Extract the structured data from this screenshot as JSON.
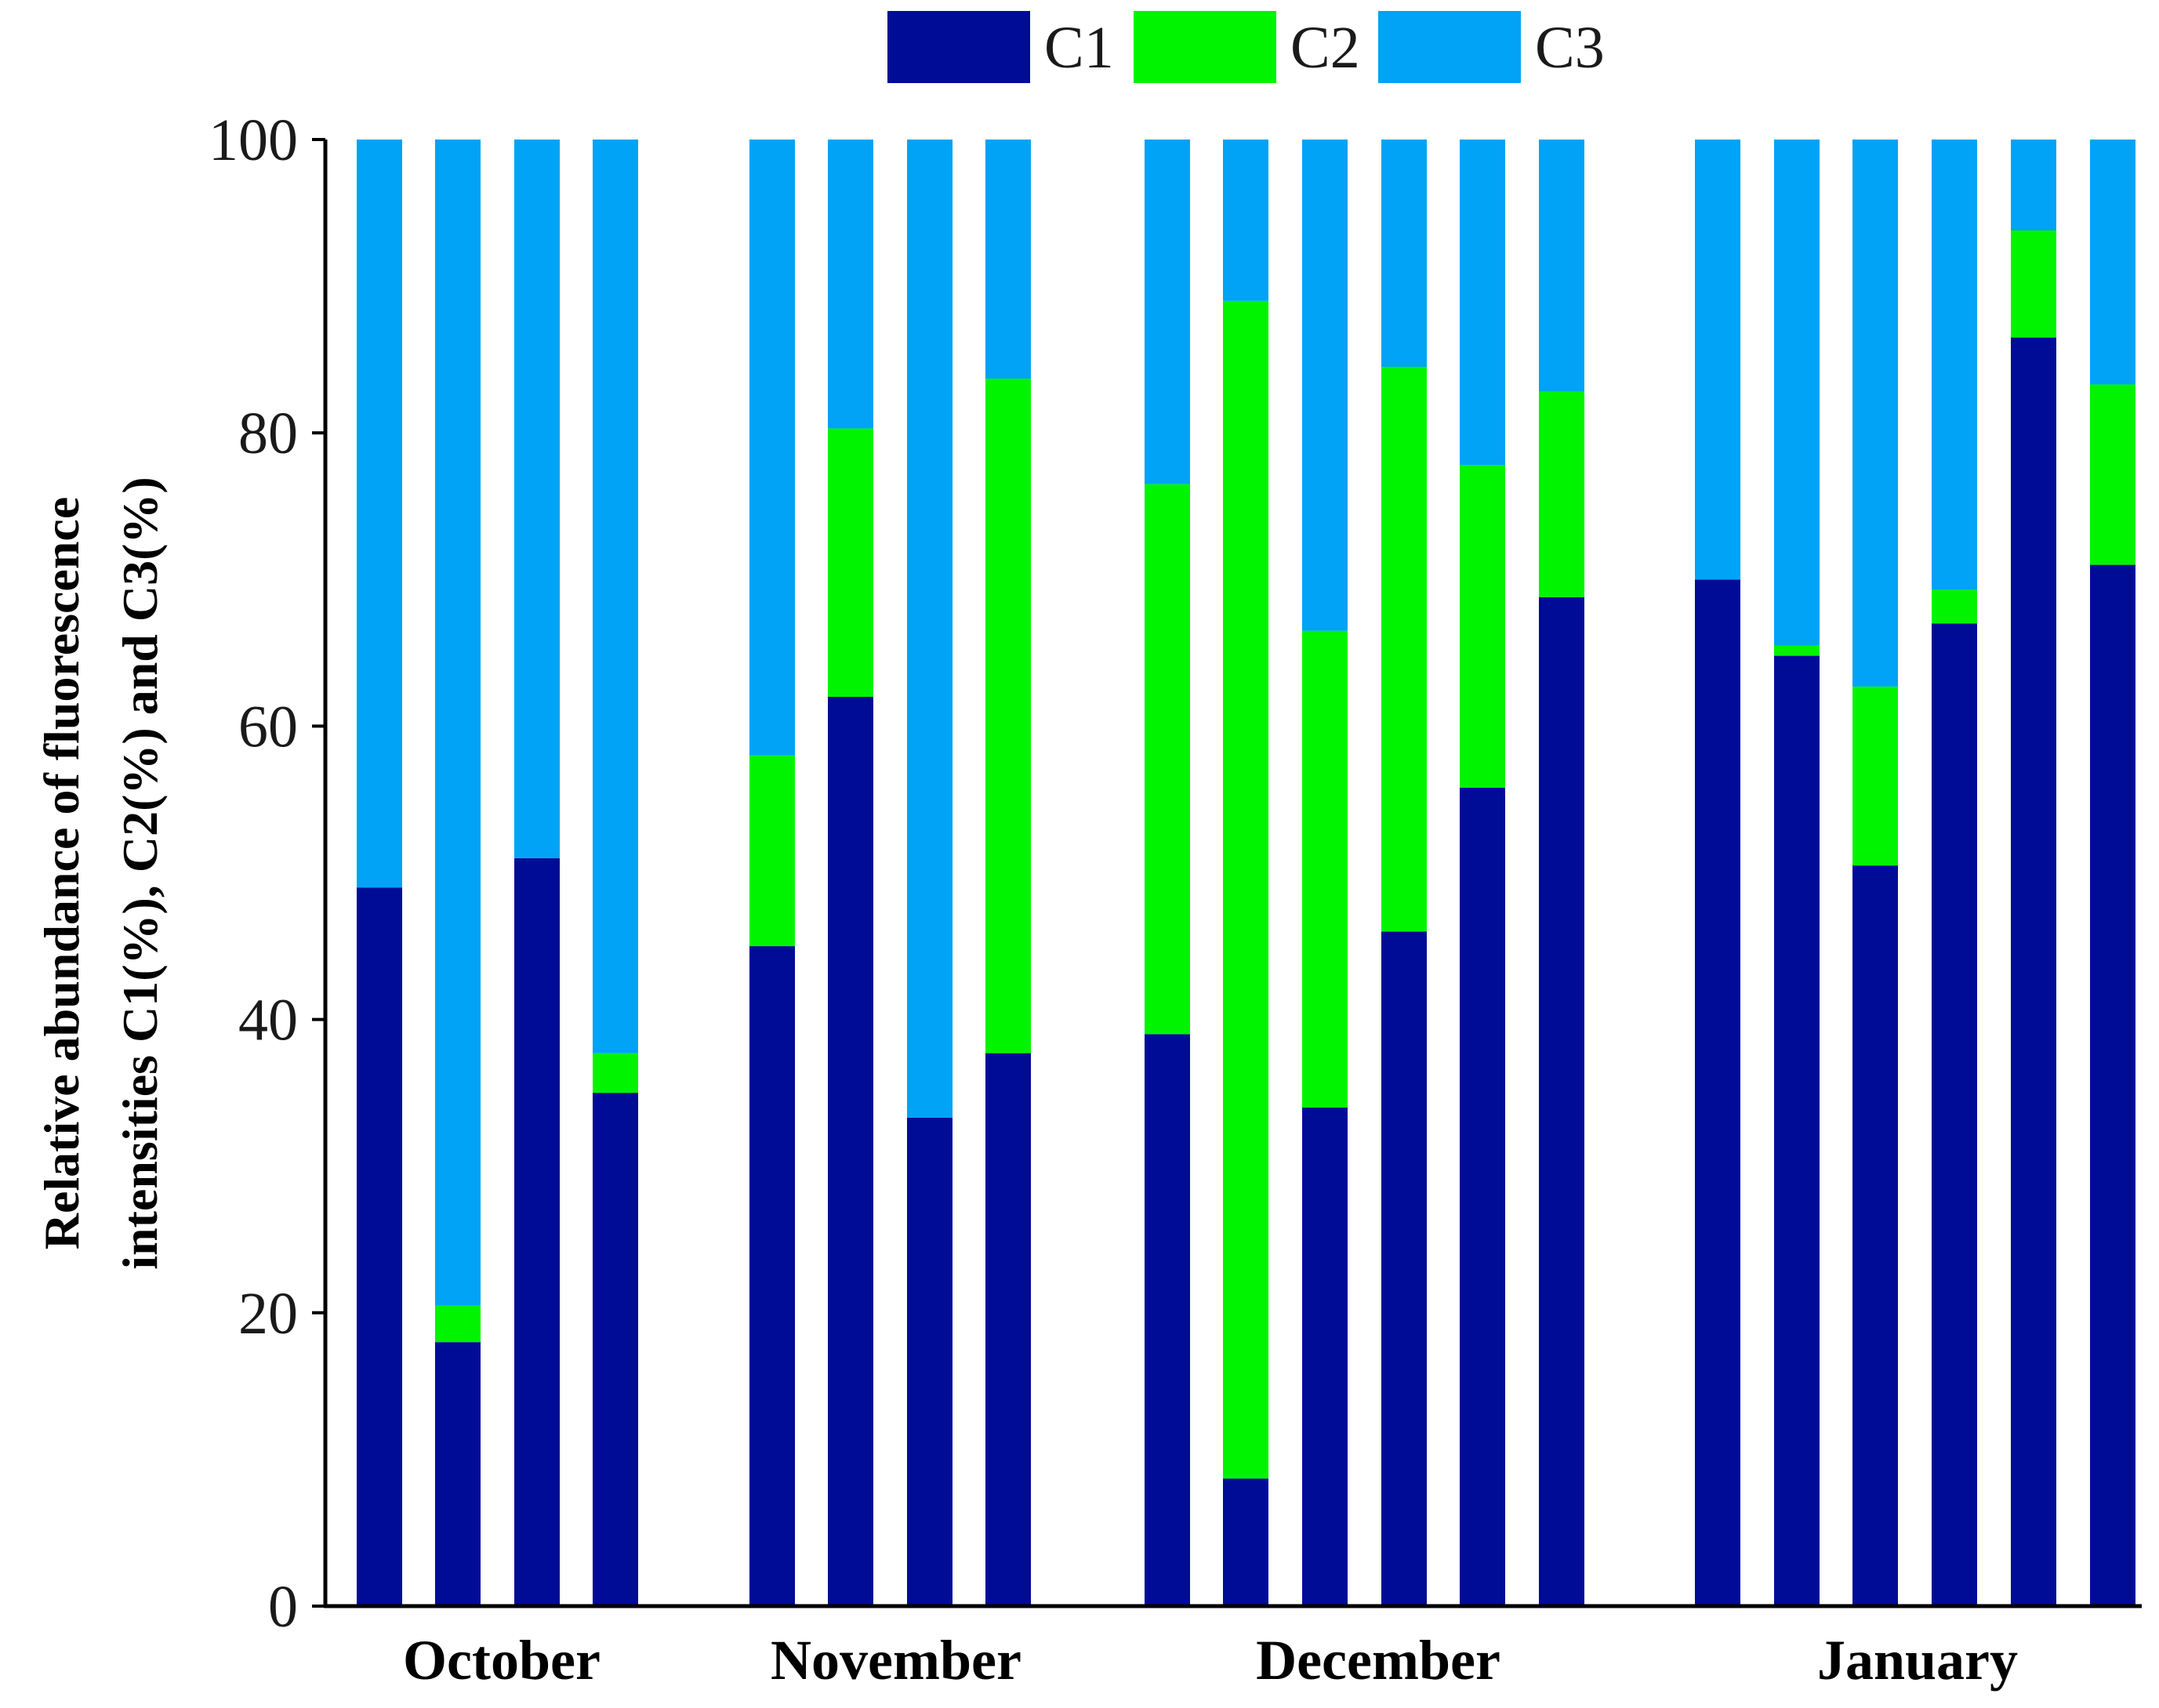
{
  "chart_data": {
    "type": "bar",
    "stacked": true,
    "title": "",
    "xlabel": "",
    "ylabel_lines": [
      "Relative abundance of fluorescence",
      "intensities C1(%), C2(%) and C3(%)"
    ],
    "ylim": [
      0,
      100
    ],
    "yticks": [
      "0",
      "20",
      "40",
      "60",
      "80",
      "100"
    ],
    "legend": {
      "placement": "top-center"
    },
    "series": [
      {
        "name": "C1",
        "color": "#000c96"
      },
      {
        "name": "C2",
        "color": "#00f400"
      },
      {
        "name": "C3",
        "color": "#00a3f5"
      }
    ],
    "groups": [
      {
        "label": "October",
        "bars": [
          {
            "C1": 49,
            "C2": 0,
            "C3": 51
          },
          {
            "C1": 18,
            "C2": 2.5,
            "C3": 79.5
          },
          {
            "C1": 51,
            "C2": 0,
            "C3": 49
          },
          {
            "C1": 35,
            "C2": 2.7,
            "C3": 62.3
          }
        ]
      },
      {
        "label": "November",
        "bars": [
          {
            "C1": 45,
            "C2": 13,
            "C3": 42
          },
          {
            "C1": 62,
            "C2": 18.3,
            "C3": 19.7
          },
          {
            "C1": 33.3,
            "C2": 0,
            "C3": 66.7
          },
          {
            "C1": 37.7,
            "C2": 46,
            "C3": 16.3
          }
        ]
      },
      {
        "label": "December",
        "bars": [
          {
            "C1": 39,
            "C2": 37.5,
            "C3": 23.5
          },
          {
            "C1": 8.7,
            "C2": 80.3,
            "C3": 11
          },
          {
            "C1": 34,
            "C2": 32.5,
            "C3": 33.5
          },
          {
            "C1": 46,
            "C2": 38.5,
            "C3": 15.5
          },
          {
            "C1": 55.8,
            "C2": 22,
            "C3": 22.2
          },
          {
            "C1": 68.8,
            "C2": 14,
            "C3": 17.2
          }
        ]
      },
      {
        "label": "January",
        "bars": [
          {
            "C1": 70,
            "C2": 0,
            "C3": 30
          },
          {
            "C1": 64.8,
            "C2": 0.7,
            "C3": 34.5
          },
          {
            "C1": 50.5,
            "C2": 12.2,
            "C3": 37.3
          },
          {
            "C1": 67,
            "C2": 2.3,
            "C3": 30.7
          },
          {
            "C1": 86.5,
            "C2": 7.3,
            "C3": 6.2
          },
          {
            "C1": 71,
            "C2": 12.3,
            "C3": 16.7
          }
        ]
      }
    ]
  }
}
